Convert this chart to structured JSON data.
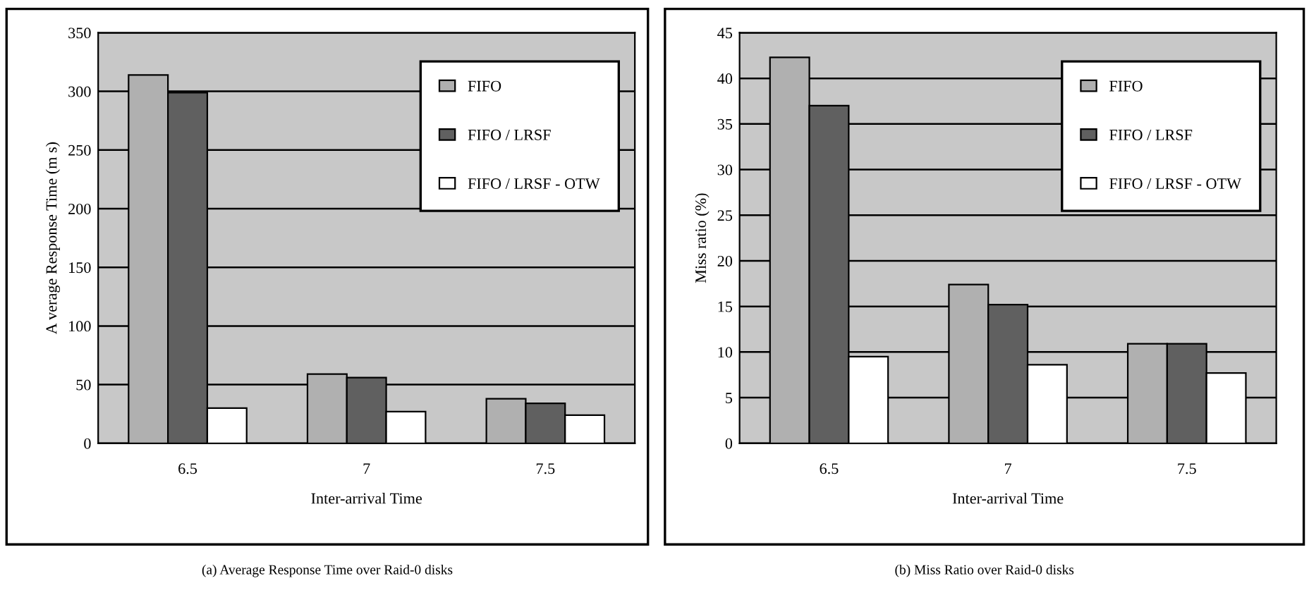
{
  "chart_data": [
    {
      "type": "bar",
      "xlabel": "Inter-arrival Time",
      "ylabel": "A verage Response Time (m s)",
      "categories": [
        "6.5",
        "7",
        "7.5"
      ],
      "series": [
        {
          "name": "FIFO",
          "color": "#b0b0b0",
          "values": [
            314,
            59,
            38
          ]
        },
        {
          "name": "FIFO / LRSF",
          "color": "#606060",
          "values": [
            299,
            56,
            34
          ]
        },
        {
          "name": "FIFO / LRSF - OTW",
          "color": "#ffffff",
          "values": [
            30,
            27,
            24
          ]
        }
      ],
      "ylim": [
        0,
        350
      ],
      "yticks": [
        0,
        50,
        100,
        150,
        200,
        250,
        300,
        350
      ],
      "grid": "y",
      "legend": "top right",
      "annotations": [
        "(a) Average Response Time over Raid-0 disks"
      ]
    },
    {
      "type": "bar",
      "xlabel": "Inter-arrival Time",
      "ylabel": "Miss ratio (%)",
      "categories": [
        "6.5",
        "7",
        "7.5"
      ],
      "series": [
        {
          "name": "FIFO",
          "color": "#b0b0b0",
          "values": [
            42.3,
            17.4,
            10.9
          ]
        },
        {
          "name": "FIFO / LRSF",
          "color": "#606060",
          "values": [
            37,
            15.2,
            10.9
          ]
        },
        {
          "name": "FIFO / LRSF - OTW",
          "color": "#ffffff",
          "values": [
            9.5,
            8.6,
            7.7
          ]
        }
      ],
      "ylim": [
        0,
        45
      ],
      "yticks": [
        0,
        5,
        10,
        15,
        20,
        25,
        30,
        35,
        40,
        45
      ],
      "grid": "y",
      "legend": "top right",
      "annotations": [
        "(b) Miss Ratio over Raid-0 disks"
      ]
    }
  ]
}
